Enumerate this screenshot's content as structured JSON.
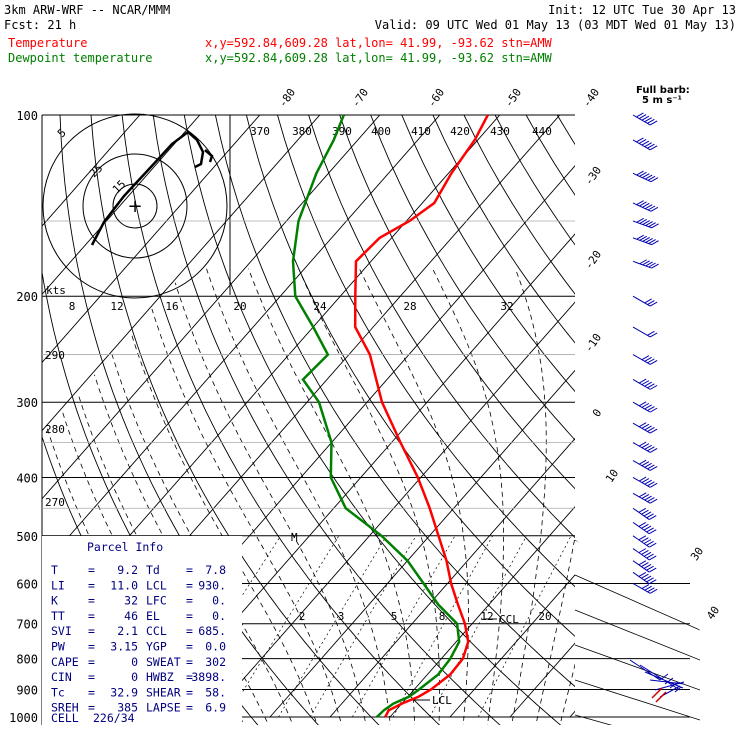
{
  "header": {
    "line1_left": "3km ARW-WRF -- NCAR/MMM",
    "line1_right": "Init: 12 UTC Tue 30 Apr 13",
    "line2_left": "Fcst:    21 h",
    "line2_right": "Valid: 09 UTC Wed 01 May 13 (03 MDT Wed 01 May 13)",
    "line3_label": "Temperature",
    "line3_info": "x,y=592.84,609.28   lat,lon= 41.99, -93.62  stn=AMW",
    "line4_label": "Dewpoint temperature",
    "line4_info": "x,y=592.84,609.28   lat,lon= 41.99, -93.62  stn=AMW",
    "barb_key_1": "Full barb:",
    "barb_key_2": "5 m s⁻¹"
  },
  "colors": {
    "temperature": "#ff0000",
    "dewpoint": "#008000",
    "parcel_info": "#000080",
    "header_text": "#000000"
  },
  "hodograph": {
    "units_label": "kts",
    "ring_labels": [
      "5",
      "25",
      "15"
    ]
  },
  "parcel_info": {
    "title": "Parcel Info",
    "rows": [
      {
        "k1": "T",
        "v1": "9.2",
        "k2": "Td",
        "v2": "7.8"
      },
      {
        "k1": "LI",
        "v1": "11.0",
        "k2": "LCL",
        "v2": "930."
      },
      {
        "k1": "K",
        "v1": "32",
        "k2": "LFC",
        "v2": "0."
      },
      {
        "k1": "TT",
        "v1": "46",
        "k2": "EL",
        "v2": "0."
      },
      {
        "k1": "SVI",
        "v1": "2.1",
        "k2": "CCL",
        "v2": "685."
      },
      {
        "k1": "PW",
        "v1": "3.15",
        "k2": "YGP",
        "v2": "0.0"
      },
      {
        "k1": "CAPE",
        "v1": "0",
        "k2": "SWEAT",
        "v2": "302"
      },
      {
        "k1": "CIN",
        "v1": "0",
        "k2": "HWBZ",
        "v2": "3898."
      },
      {
        "k1": "Tc",
        "v1": "32.9",
        "k2": "SHEAR",
        "v2": "58."
      },
      {
        "k1": "SREH",
        "v1": "385",
        "k2": "LAPSE",
        "v2": "6.9"
      }
    ],
    "cell_label": "CELL",
    "cell_value": "226/34"
  },
  "chart_data": {
    "type": "skew-t",
    "pressure_levels": [
      100,
      200,
      300,
      400,
      500,
      600,
      700,
      800,
      900,
      1000
    ],
    "pressure_labels": [
      "100",
      "200",
      "300",
      "400",
      "500",
      "600",
      "700",
      "800",
      "900",
      "1000"
    ],
    "ylim": [
      1000,
      100
    ],
    "isotherms_C": [
      -80,
      -70,
      -60,
      -50,
      -40,
      -30,
      -20,
      -10,
      0,
      10,
      20,
      30,
      40
    ],
    "isotherm_labels": [
      "-80",
      "-70",
      "-60",
      "-50",
      "-40",
      "-30",
      "-20",
      "-10",
      "0",
      "10",
      "30",
      "40"
    ],
    "theta_e_labels": [
      "370",
      "380",
      "390",
      "400",
      "410",
      "420",
      "430",
      "440"
    ],
    "mixing_ratio_labels": [
      "8",
      "12",
      "16",
      "20",
      "24",
      "28",
      "32"
    ],
    "mixing_ratio_labels_lower": [
      "2",
      "3",
      "5",
      "8",
      "12",
      "20"
    ],
    "theta_labels": [
      "290",
      "280",
      "270"
    ],
    "level_markers": [
      {
        "label": "M",
        "p": 500
      },
      {
        "label": "CCL",
        "p": 685
      },
      {
        "label": "LCL",
        "p": 930
      }
    ],
    "series": [
      {
        "name": "Temperature",
        "points": [
          {
            "p": 1000,
            "t": 9.2
          },
          {
            "p": 975,
            "t": 8.8
          },
          {
            "p": 950,
            "t": 10.0
          },
          {
            "p": 925,
            "t": 11.8
          },
          {
            "p": 900,
            "t": 12.8
          },
          {
            "p": 850,
            "t": 13.8
          },
          {
            "p": 800,
            "t": 13.6
          },
          {
            "p": 750,
            "t": 12.0
          },
          {
            "p": 700,
            "t": 8.8
          },
          {
            "p": 650,
            "t": 4.8
          },
          {
            "p": 600,
            "t": 0.6
          },
          {
            "p": 550,
            "t": -3.5
          },
          {
            "p": 500,
            "t": -8.5
          },
          {
            "p": 450,
            "t": -14.0
          },
          {
            "p": 400,
            "t": -20.5
          },
          {
            "p": 350,
            "t": -28.5
          },
          {
            "p": 300,
            "t": -37.5
          },
          {
            "p": 250,
            "t": -46.5
          },
          {
            "p": 225,
            "t": -53.0
          },
          {
            "p": 200,
            "t": -57.5
          },
          {
            "p": 175,
            "t": -62.5
          },
          {
            "p": 160,
            "t": -62.0
          },
          {
            "p": 150,
            "t": -59.5
          },
          {
            "p": 140,
            "t": -58.0
          },
          {
            "p": 125,
            "t": -59.5
          },
          {
            "p": 110,
            "t": -60.5
          },
          {
            "p": 100,
            "t": -62.0
          }
        ]
      },
      {
        "name": "Dewpoint temperature",
        "points": [
          {
            "p": 1000,
            "t": 7.8
          },
          {
            "p": 975,
            "t": 8.0
          },
          {
            "p": 950,
            "t": 8.6
          },
          {
            "p": 925,
            "t": 10.2
          },
          {
            "p": 900,
            "t": 10.8
          },
          {
            "p": 850,
            "t": 11.8
          },
          {
            "p": 800,
            "t": 11.5
          },
          {
            "p": 750,
            "t": 10.5
          },
          {
            "p": 700,
            "t": 7.5
          },
          {
            "p": 650,
            "t": 1.5
          },
          {
            "p": 600,
            "t": -4.0
          },
          {
            "p": 550,
            "t": -10.0
          },
          {
            "p": 500,
            "t": -18.0
          },
          {
            "p": 450,
            "t": -28.0
          },
          {
            "p": 400,
            "t": -35.0
          },
          {
            "p": 350,
            "t": -40.0
          },
          {
            "p": 300,
            "t": -48.0
          },
          {
            "p": 275,
            "t": -54.0
          },
          {
            "p": 250,
            "t": -53.5
          },
          {
            "p": 225,
            "t": -60.0
          },
          {
            "p": 200,
            "t": -67.5
          },
          {
            "p": 175,
            "t": -73.0
          },
          {
            "p": 150,
            "t": -78.0
          },
          {
            "p": 125,
            "t": -82.0
          },
          {
            "p": 110,
            "t": -84.0
          },
          {
            "p": 100,
            "t": -86.0
          }
        ]
      }
    ],
    "wind_barbs": {
      "units": "m/s",
      "levels": [
        {
          "p": 100,
          "dir": 300,
          "spd": 35
        },
        {
          "p": 110,
          "dir": 300,
          "spd": 35
        },
        {
          "p": 125,
          "dir": 295,
          "spd": 35
        },
        {
          "p": 140,
          "dir": 295,
          "spd": 35
        },
        {
          "p": 150,
          "dir": 290,
          "spd": 30
        },
        {
          "p": 160,
          "dir": 290,
          "spd": 30
        },
        {
          "p": 175,
          "dir": 290,
          "spd": 25
        },
        {
          "p": 200,
          "dir": 300,
          "spd": 15
        },
        {
          "p": 225,
          "dir": 300,
          "spd": 10
        },
        {
          "p": 250,
          "dir": 300,
          "spd": 20
        },
        {
          "p": 275,
          "dir": 300,
          "spd": 25
        },
        {
          "p": 300,
          "dir": 300,
          "spd": 25
        },
        {
          "p": 325,
          "dir": 300,
          "spd": 25
        },
        {
          "p": 350,
          "dir": 300,
          "spd": 25
        },
        {
          "p": 375,
          "dir": 300,
          "spd": 25
        },
        {
          "p": 400,
          "dir": 300,
          "spd": 25
        },
        {
          "p": 425,
          "dir": 300,
          "spd": 25
        },
        {
          "p": 450,
          "dir": 305,
          "spd": 25
        },
        {
          "p": 475,
          "dir": 305,
          "spd": 25
        },
        {
          "p": 500,
          "dir": 305,
          "spd": 25
        },
        {
          "p": 525,
          "dir": 305,
          "spd": 25
        },
        {
          "p": 550,
          "dir": 305,
          "spd": 25
        },
        {
          "p": 575,
          "dir": 305,
          "spd": 25
        },
        {
          "p": 600,
          "dir": 300,
          "spd": 20
        }
      ]
    }
  }
}
